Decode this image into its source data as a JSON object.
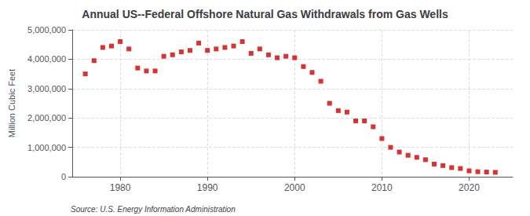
{
  "chart_data": {
    "type": "scatter",
    "title": "Annual US--Federal Offshore Natural Gas Withdrawals from Gas Wells",
    "y_label": "Million Cubic Feet",
    "annotations": [
      "Source: U.S. Energy Information Administration"
    ],
    "x": [
      1976,
      1977,
      1978,
      1979,
      1980,
      1981,
      1982,
      1983,
      1984,
      1985,
      1986,
      1987,
      1988,
      1989,
      1990,
      1991,
      1992,
      1993,
      1994,
      1995,
      1996,
      1997,
      1998,
      1999,
      2000,
      2001,
      2002,
      2003,
      2004,
      2005,
      2006,
      2007,
      2008,
      2009,
      2010,
      2011,
      2012,
      2013,
      2014,
      2015,
      2016,
      2017,
      2018,
      2019,
      2020,
      2021,
      2022,
      2023
    ],
    "values": [
      3500000,
      3950000,
      4400000,
      4450000,
      4600000,
      4350000,
      3700000,
      3600000,
      3600000,
      4100000,
      4150000,
      4250000,
      4300000,
      4550000,
      4300000,
      4350000,
      4400000,
      4450000,
      4600000,
      4200000,
      4350000,
      4150000,
      4050000,
      4100000,
      4050000,
      3750000,
      3550000,
      3250000,
      2500000,
      2250000,
      2200000,
      1900000,
      1900000,
      1700000,
      1300000,
      1000000,
      840000,
      730000,
      660000,
      580000,
      430000,
      380000,
      310000,
      280000,
      200000,
      170000,
      160000,
      150000
    ],
    "color": "#cc0000",
    "marker": "square",
    "xlim": [
      1974.5,
      2025
    ],
    "xticks": [
      1980,
      1990,
      2000,
      2010,
      2020
    ],
    "ylim": [
      0,
      5000000
    ],
    "yticks": [
      0,
      {
        "value": 1000000,
        "label": "1,000,000"
      },
      {
        "value": 2000000,
        "label": "2,000,000"
      },
      {
        "value": 3000000,
        "label": "3,000,000"
      },
      {
        "value": 4000000,
        "label": "4,000,000"
      },
      {
        "value": 5000000,
        "label": "5,000,000"
      }
    ],
    "grid": true
  }
}
